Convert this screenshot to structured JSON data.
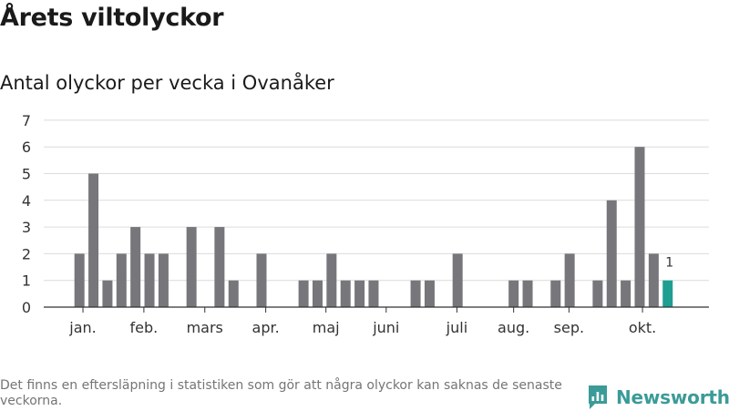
{
  "title": "Årets viltolyckor",
  "subtitle": "Antal olyckor per vecka i Ovanåker",
  "footnote": "Det finns en eftersläpning i statistiken som gör att några olyckor kan saknas de senaste veckorna.",
  "brand": {
    "name": "Newsworthy",
    "icon": "newsworthy-logo-icon",
    "color": "#3b9b98"
  },
  "colors": {
    "bar": "#76767b",
    "highlight": "#1f9e91",
    "grid": "#dcdcdc",
    "axis": "#333333"
  },
  "chart_data": {
    "type": "bar",
    "x": [
      1,
      2,
      3,
      4,
      5,
      6,
      7,
      8,
      9,
      10,
      11,
      12,
      13,
      14,
      15,
      16,
      17,
      18,
      19,
      20,
      21,
      22,
      23,
      24,
      25,
      26,
      27,
      28,
      29,
      30,
      31,
      32,
      33,
      34,
      35,
      36,
      37,
      38,
      39,
      40,
      41,
      42,
      43
    ],
    "values": [
      2,
      5,
      1,
      2,
      3,
      2,
      2,
      0,
      3,
      0,
      3,
      1,
      0,
      2,
      0,
      0,
      1,
      1,
      2,
      1,
      1,
      1,
      0,
      0,
      1,
      1,
      0,
      2,
      0,
      0,
      0,
      1,
      1,
      0,
      1,
      2,
      0,
      1,
      4,
      1,
      6,
      2,
      1
    ],
    "highlight_index": 42,
    "data_labels": [
      {
        "index": 42,
        "text": "1"
      }
    ],
    "ylim": [
      0,
      7
    ],
    "yticks": [
      0,
      1,
      2,
      3,
      4,
      5,
      6,
      7
    ],
    "month_ticks": [
      {
        "label": "jan.",
        "x": 1.25
      },
      {
        "label": "feb.",
        "x": 5.6
      },
      {
        "label": "mars",
        "x": 9.95
      },
      {
        "label": "apr.",
        "x": 14.3
      },
      {
        "label": "maj",
        "x": 18.6
      },
      {
        "label": "juni",
        "x": 22.9
      },
      {
        "label": "juli",
        "x": 27.95
      },
      {
        "label": "aug.",
        "x": 32
      },
      {
        "label": "sep.",
        "x": 35.95
      },
      {
        "label": "okt.",
        "x": 41.2
      }
    ],
    "grid": true,
    "legend": "none",
    "xlabel": "",
    "ylabel": ""
  }
}
